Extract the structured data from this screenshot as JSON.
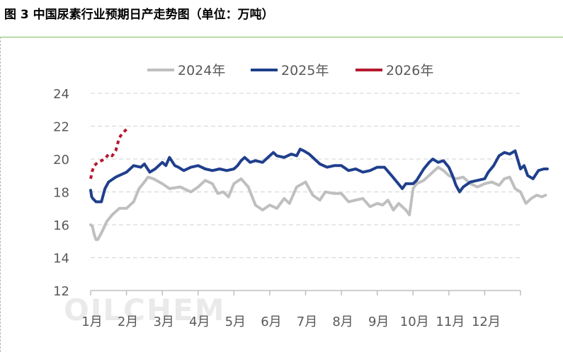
{
  "figure": {
    "title": "图 3  中国尿素行业预期日产走势图（单位：万吨）",
    "watermark": "OILCHEM"
  },
  "colors": {
    "2024": "#bfbfbf",
    "2025": "#1f3f8c",
    "2026": "#b5192f",
    "grid": "#d9d9d9",
    "axis": "#bfbfbf"
  },
  "chart_data": {
    "type": "line",
    "title": "中国尿素行业预期日产走势图（单位：万吨）",
    "xlabel": "",
    "ylabel": "",
    "ylim": [
      12,
      24
    ],
    "y_ticks": [
      "12",
      "14",
      "16",
      "18",
      "20",
      "22",
      "24"
    ],
    "x_ticks": [
      "1月",
      "2月",
      "3月",
      "4月",
      "5月",
      "6月",
      "7月",
      "8月",
      "9月",
      "10月",
      "11月",
      "12月"
    ],
    "x_units": "month (1.0 = start of 1月, 13.0 = end of 12月)",
    "grid": true,
    "legend_position": "top",
    "series": [
      {
        "name": "2024年",
        "color": "#bfbfbf",
        "style": "solid",
        "points": [
          [
            1.0,
            16.0
          ],
          [
            1.05,
            15.9
          ],
          [
            1.1,
            15.4
          ],
          [
            1.15,
            15.1
          ],
          [
            1.2,
            15.1
          ],
          [
            1.3,
            15.5
          ],
          [
            1.45,
            16.2
          ],
          [
            1.6,
            16.6
          ],
          [
            1.8,
            17.0
          ],
          [
            2.0,
            17.0
          ],
          [
            2.1,
            17.2
          ],
          [
            2.2,
            17.4
          ],
          [
            2.35,
            18.2
          ],
          [
            2.5,
            18.6
          ],
          [
            2.6,
            18.9
          ],
          [
            2.75,
            18.8
          ],
          [
            3.0,
            18.5
          ],
          [
            3.2,
            18.2
          ],
          [
            3.5,
            18.3
          ],
          [
            3.8,
            18.0
          ],
          [
            4.0,
            18.3
          ],
          [
            4.2,
            18.7
          ],
          [
            4.4,
            18.5
          ],
          [
            4.55,
            17.9
          ],
          [
            4.7,
            18.0
          ],
          [
            4.85,
            17.7
          ],
          [
            5.0,
            18.5
          ],
          [
            5.2,
            18.8
          ],
          [
            5.4,
            18.3
          ],
          [
            5.6,
            17.2
          ],
          [
            5.8,
            16.9
          ],
          [
            6.0,
            17.2
          ],
          [
            6.2,
            17.0
          ],
          [
            6.4,
            17.6
          ],
          [
            6.55,
            17.3
          ],
          [
            6.75,
            18.3
          ],
          [
            7.0,
            18.6
          ],
          [
            7.2,
            17.8
          ],
          [
            7.4,
            17.5
          ],
          [
            7.55,
            18.0
          ],
          [
            7.8,
            17.9
          ],
          [
            8.0,
            17.9
          ],
          [
            8.2,
            17.4
          ],
          [
            8.4,
            17.5
          ],
          [
            8.6,
            17.6
          ],
          [
            8.8,
            17.1
          ],
          [
            9.0,
            17.3
          ],
          [
            9.15,
            17.2
          ],
          [
            9.3,
            17.5
          ],
          [
            9.45,
            16.9
          ],
          [
            9.6,
            17.3
          ],
          [
            9.8,
            16.9
          ],
          [
            9.9,
            16.6
          ],
          [
            10.0,
            18.2
          ],
          [
            10.1,
            18.5
          ],
          [
            10.3,
            18.7
          ],
          [
            10.5,
            19.1
          ],
          [
            10.7,
            19.5
          ],
          [
            10.85,
            19.3
          ],
          [
            11.0,
            19.0
          ],
          [
            11.2,
            18.8
          ],
          [
            11.4,
            18.9
          ],
          [
            11.6,
            18.5
          ],
          [
            11.8,
            18.3
          ],
          [
            12.0,
            18.5
          ],
          [
            12.2,
            18.6
          ],
          [
            12.4,
            18.4
          ],
          [
            12.55,
            18.8
          ],
          [
            12.7,
            18.9
          ],
          [
            12.85,
            18.2
          ],
          [
            13.0,
            18.0
          ],
          [
            13.15,
            17.3
          ],
          [
            13.3,
            17.6
          ],
          [
            13.45,
            17.8
          ],
          [
            13.6,
            17.7
          ],
          [
            13.7,
            17.8
          ]
        ]
      },
      {
        "name": "2025年",
        "color": "#1f3f8c",
        "style": "solid",
        "points": [
          [
            1.0,
            18.1
          ],
          [
            1.03,
            17.7
          ],
          [
            1.06,
            17.6
          ],
          [
            1.15,
            17.4
          ],
          [
            1.3,
            17.4
          ],
          [
            1.4,
            18.2
          ],
          [
            1.5,
            18.6
          ],
          [
            1.7,
            18.9
          ],
          [
            1.9,
            19.1
          ],
          [
            2.0,
            19.2
          ],
          [
            2.2,
            19.6
          ],
          [
            2.4,
            19.5
          ],
          [
            2.5,
            19.7
          ],
          [
            2.65,
            19.2
          ],
          [
            2.8,
            19.4
          ],
          [
            3.0,
            19.8
          ],
          [
            3.1,
            19.6
          ],
          [
            3.2,
            20.1
          ],
          [
            3.35,
            19.6
          ],
          [
            3.45,
            19.5
          ],
          [
            3.6,
            19.3
          ],
          [
            3.8,
            19.5
          ],
          [
            4.0,
            19.6
          ],
          [
            4.2,
            19.4
          ],
          [
            4.4,
            19.3
          ],
          [
            4.6,
            19.4
          ],
          [
            4.8,
            19.3
          ],
          [
            5.0,
            19.4
          ],
          [
            5.1,
            19.6
          ],
          [
            5.2,
            19.9
          ],
          [
            5.3,
            20.1
          ],
          [
            5.45,
            19.8
          ],
          [
            5.6,
            19.9
          ],
          [
            5.8,
            19.8
          ],
          [
            6.0,
            20.2
          ],
          [
            6.1,
            20.4
          ],
          [
            6.2,
            20.2
          ],
          [
            6.4,
            20.1
          ],
          [
            6.6,
            20.3
          ],
          [
            6.75,
            20.2
          ],
          [
            6.85,
            20.6
          ],
          [
            6.95,
            20.5
          ],
          [
            7.1,
            20.3
          ],
          [
            7.25,
            20.0
          ],
          [
            7.4,
            19.7
          ],
          [
            7.6,
            19.5
          ],
          [
            7.8,
            19.6
          ],
          [
            8.0,
            19.6
          ],
          [
            8.2,
            19.3
          ],
          [
            8.4,
            19.4
          ],
          [
            8.6,
            19.2
          ],
          [
            8.8,
            19.3
          ],
          [
            9.0,
            19.5
          ],
          [
            9.2,
            19.5
          ],
          [
            9.4,
            19.0
          ],
          [
            9.55,
            18.6
          ],
          [
            9.7,
            18.2
          ],
          [
            9.8,
            18.5
          ],
          [
            10.0,
            18.5
          ],
          [
            10.1,
            18.7
          ],
          [
            10.3,
            19.4
          ],
          [
            10.45,
            19.8
          ],
          [
            10.55,
            20.0
          ],
          [
            10.7,
            19.8
          ],
          [
            10.85,
            19.9
          ],
          [
            11.0,
            19.5
          ],
          [
            11.1,
            19.0
          ],
          [
            11.2,
            18.4
          ],
          [
            11.3,
            18.0
          ],
          [
            11.4,
            18.3
          ],
          [
            11.6,
            18.6
          ],
          [
            11.8,
            18.7
          ],
          [
            12.0,
            18.8
          ],
          [
            12.1,
            19.2
          ],
          [
            12.25,
            19.6
          ],
          [
            12.4,
            20.2
          ],
          [
            12.55,
            20.4
          ],
          [
            12.7,
            20.3
          ],
          [
            12.85,
            20.5
          ],
          [
            13.0,
            19.4
          ],
          [
            13.1,
            19.6
          ],
          [
            13.2,
            19.0
          ],
          [
            13.35,
            18.8
          ],
          [
            13.5,
            19.3
          ],
          [
            13.65,
            19.4
          ],
          [
            13.75,
            19.4
          ]
        ]
      },
      {
        "name": "2026年",
        "color": "#b5192f",
        "style": "dashed",
        "points": [
          [
            1.0,
            18.8
          ],
          [
            1.05,
            19.3
          ],
          [
            1.1,
            19.6
          ],
          [
            1.2,
            19.8
          ],
          [
            1.3,
            19.9
          ],
          [
            1.4,
            20.0
          ],
          [
            1.5,
            20.3
          ],
          [
            1.6,
            20.2
          ],
          [
            1.7,
            20.5
          ],
          [
            1.75,
            20.9
          ],
          [
            1.8,
            21.3
          ],
          [
            1.9,
            21.6
          ],
          [
            2.0,
            21.8
          ]
        ]
      }
    ]
  }
}
